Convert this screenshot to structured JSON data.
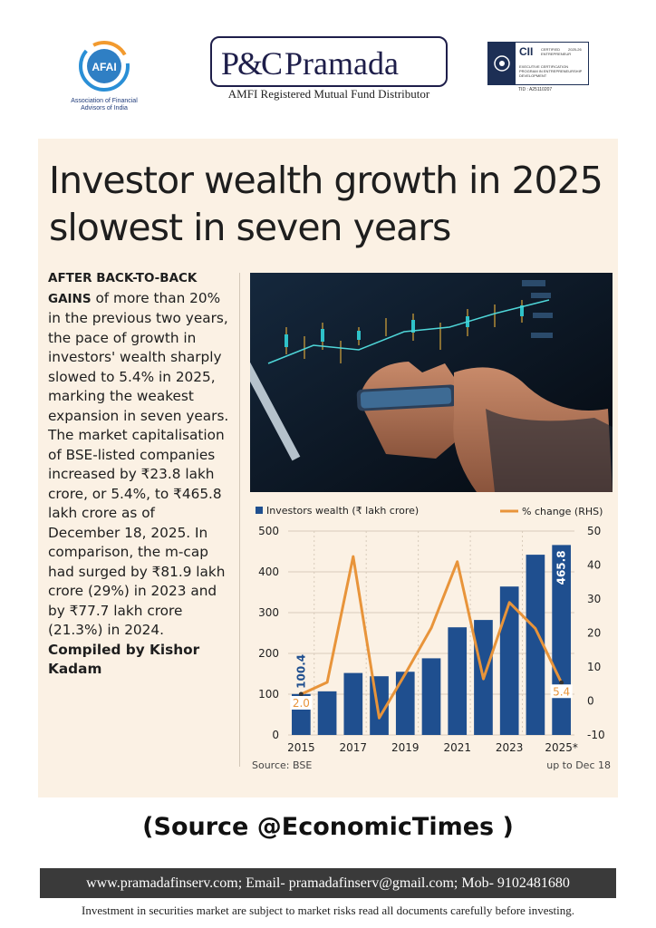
{
  "header": {
    "afai_logo_text": "AFAI",
    "afai_name": "Association of Financial Advisors of India",
    "brand_mark": "P&C",
    "brand_name": "Pramada",
    "brand_tagline": "AMFI Registered Mutual Fund Distributor",
    "cii_logo": "CII",
    "cii_certified": "CERTIFIED ENTREPRENEUR",
    "cii_year": "2025-26",
    "cii_program": "EXECUTIVE CERTIFICATION PROGRAM IN ENTREPRENEURSHIP DEVELOPMENT",
    "cii_tid": "TID : A25110207"
  },
  "article": {
    "headline": "Investor wealth growth in 2025 slowest in seven years",
    "lead": "AFTER BACK-TO-BACK GAINS",
    "body": " of more than 20% in the previous two years, the pace of growth in investors' wealth sharply slowed to 5.4% in 2025, marking the weakest expansion in seven years. The market capitalisation of BSE-listed companies increased by ₹23.8 lakh crore, or 5.4%, to ₹465.8 lakh crore as of December 18, 2025. In comparison, the m-cap had surged by ₹81.9 lakh crore (29%) in 2023 and by ₹77.7 lakh crore (21.3%) in 2024.",
    "compiled": "Compiled by Kishor Kadam"
  },
  "chart_data": {
    "type": "bar",
    "title": "",
    "categories": [
      "2015",
      "2016",
      "2017",
      "2018",
      "2019",
      "2020",
      "2021",
      "2022",
      "2023",
      "2024",
      "2025*"
    ],
    "x_tick_labels": [
      "2015",
      "2017",
      "2019",
      "2021",
      "2023",
      "2025*"
    ],
    "series": [
      {
        "name": "Investors wealth (₹ lakh crore)",
        "kind": "bar",
        "axis": "left",
        "color": "#1f4f8f",
        "values": [
          100.4,
          107,
          152,
          144,
          155,
          188,
          264,
          282,
          364,
          442,
          465.8
        ]
      },
      {
        "name": "% change (RHS)",
        "kind": "line",
        "axis": "right",
        "color": "#e8943a",
        "values": [
          2.0,
          5.5,
          42.5,
          -5,
          8,
          21.5,
          41,
          6.5,
          29,
          21.3,
          5.4
        ]
      }
    ],
    "y_left": {
      "min": 0,
      "max": 500,
      "ticks": [
        0,
        100,
        200,
        300,
        400,
        500
      ]
    },
    "y_right": {
      "min": -10,
      "max": 50,
      "ticks": [
        -10,
        0,
        10,
        20,
        30,
        40,
        50
      ]
    },
    "data_labels": {
      "first_bar": "100.4",
      "last_bar": "465.8",
      "first_pct": "2.0",
      "last_pct": "5.4"
    },
    "source": "Source: BSE",
    "note": "up to Dec 18",
    "legend_position": "top"
  },
  "footer": {
    "source_line": "(Source @EconomicTimes )",
    "contact": "www.pramadafinserv.com; Email- pramadafinserv@gmail.com; Mob- 9102481680",
    "disclaimer": "Investment in securities market are subject to market risks read all documents carefully before investing."
  },
  "colors": {
    "bar": "#1f4f8f",
    "line": "#e8943a",
    "card_bg": "#fbf1e4",
    "contact_bg": "#3a3a3a"
  }
}
